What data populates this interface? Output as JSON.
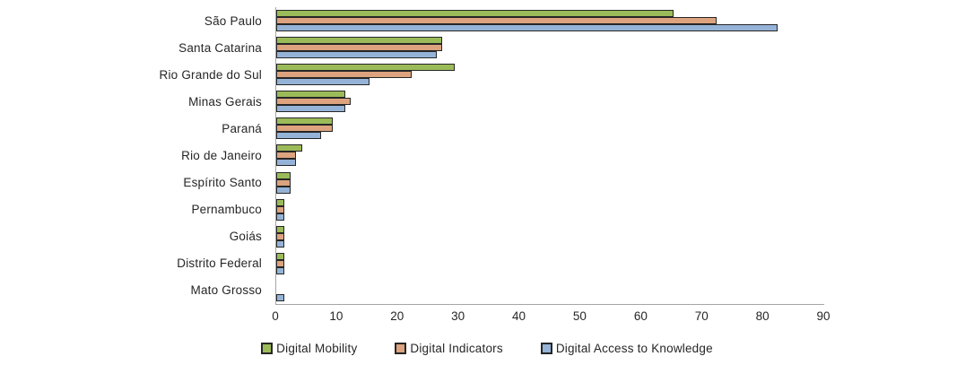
{
  "chart_data": {
    "type": "bar",
    "orientation": "horizontal",
    "title": "",
    "xlabel": "",
    "ylabel": "",
    "categories": [
      "São Paulo",
      "Santa Catarina",
      "Rio Grande do Sul",
      "Minas Gerais",
      "Paraná",
      "Rio de Janeiro",
      "Espírito Santo",
      "Pernambuco",
      "Goiás",
      "Distrito Federal",
      "Mato Grosso"
    ],
    "series": [
      {
        "name": "Digital Mobility",
        "color": "#9bbb59",
        "values": [
          65,
          27,
          29,
          11,
          9,
          4,
          2,
          1,
          1,
          1,
          0
        ]
      },
      {
        "name": "Digital Indicators",
        "color": "#dca37e",
        "values": [
          72,
          27,
          22,
          12,
          9,
          3,
          2,
          1,
          1,
          1,
          0
        ]
      },
      {
        "name": "Digital Access to Knowledge",
        "color": "#95b3d7",
        "values": [
          82,
          26,
          15,
          11,
          7,
          3,
          2,
          1,
          1,
          1,
          1
        ]
      }
    ],
    "xlim": [
      0,
      90
    ],
    "xticks": [
      0,
      10,
      20,
      30,
      40,
      50,
      60,
      70,
      80,
      90
    ],
    "grid": false,
    "legend_position": "bottom",
    "bar_border_color": "#262626",
    "axis_color": "#a6a6a6",
    "text_color": "#262626",
    "background_color": "#ffffff"
  }
}
